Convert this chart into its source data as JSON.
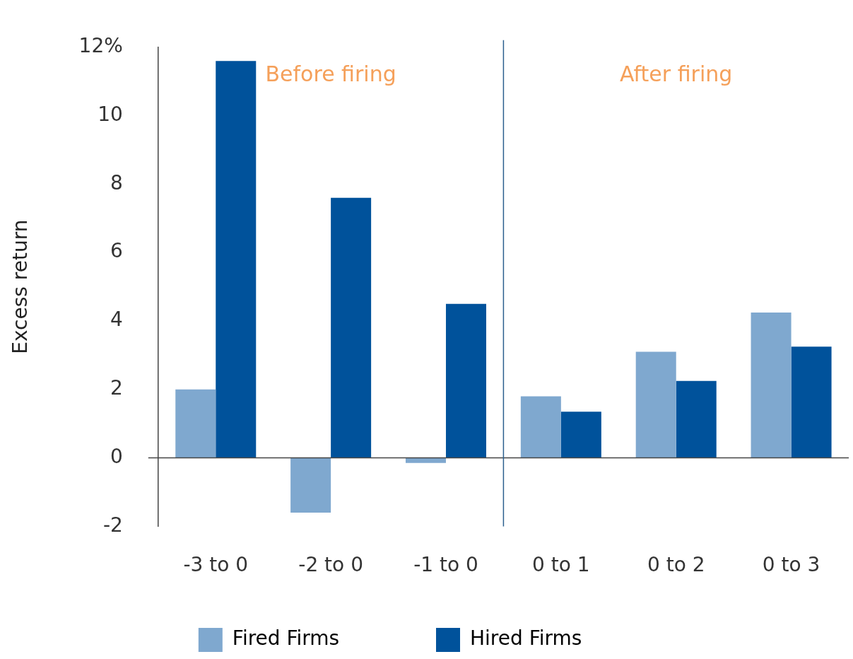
{
  "chart_data": {
    "type": "bar",
    "categories": [
      "-3 to 0",
      "-2 to 0",
      "-1 to 0",
      "0 to 1",
      "0 to 2",
      "0 to 3"
    ],
    "series": [
      {
        "name": "Fired Firms",
        "color": "#7fa8cf",
        "values": [
          2.0,
          -1.6,
          -0.15,
          1.8,
          3.1,
          4.25
        ]
      },
      {
        "name": "Hired Firms",
        "color": "#00529b",
        "values": [
          11.6,
          7.6,
          4.5,
          1.35,
          2.25,
          3.25
        ]
      }
    ],
    "ylabel": "Excess return",
    "ylim": [
      -2,
      12
    ],
    "yticks": [
      -2,
      0,
      2,
      4,
      6,
      8,
      10,
      {
        "value": 12,
        "label": "12%"
      }
    ],
    "ref_lines": [
      {
        "axis": "y",
        "value": 0,
        "color": "#444444"
      },
      {
        "axis": "x",
        "value": "0 to 1",
        "color": "#2b5f8e"
      }
    ],
    "annotations": [
      "Before firing",
      "After firing"
    ],
    "grid": false,
    "legend": "bottom"
  }
}
